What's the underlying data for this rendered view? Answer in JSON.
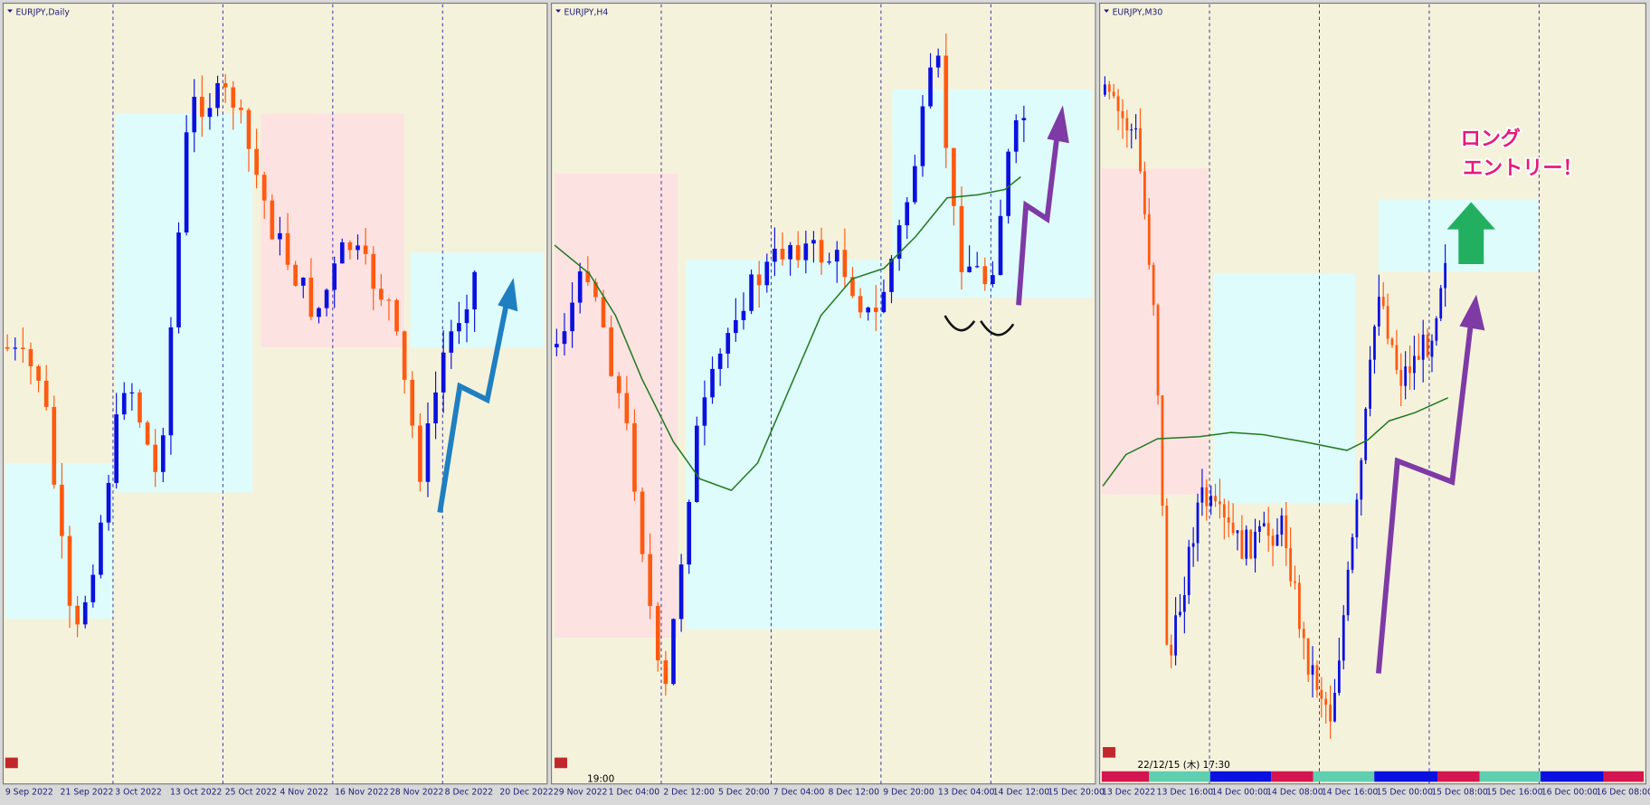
{
  "panels": [
    {
      "title": "EURJPY,Daily",
      "xlabels": [
        "9 Sep 2022",
        "21 Sep 2022",
        "3 Oct 2022",
        "13 Oct 2022",
        "25 Oct 2022",
        "4 Nov 2022",
        "16 Nov 2022",
        "28 Nov 2022",
        "8 Dec 2022",
        "20 Dec 2022"
      ]
    },
    {
      "title": "EURJPY,H4",
      "time": "19:00",
      "xlabels": [
        "29 Nov 2022",
        "1 Dec 04:00",
        "2 Dec 12:00",
        "5 Dec 20:00",
        "7 Dec 04:00",
        "8 Dec 12:00",
        "9 Dec 20:00",
        "13 Dec 04:00",
        "14 Dec 12:00",
        "15 Dec 20:00"
      ]
    },
    {
      "title": "EURJPY,M30",
      "time": "22/12/15 (木) 17:30",
      "annotation": [
        "ロング",
        "エントリー！"
      ],
      "xlabels": [
        "13 Dec 2022",
        "13 Dec 16:00",
        "14 Dec 00:00",
        "14 Dec 08:00",
        "14 Dec 16:00",
        "15 Dec 00:00",
        "15 Dec 08:00",
        "15 Dec 16:00",
        "16 Dec 00:00",
        "16 Dec 08:00"
      ]
    }
  ]
}
